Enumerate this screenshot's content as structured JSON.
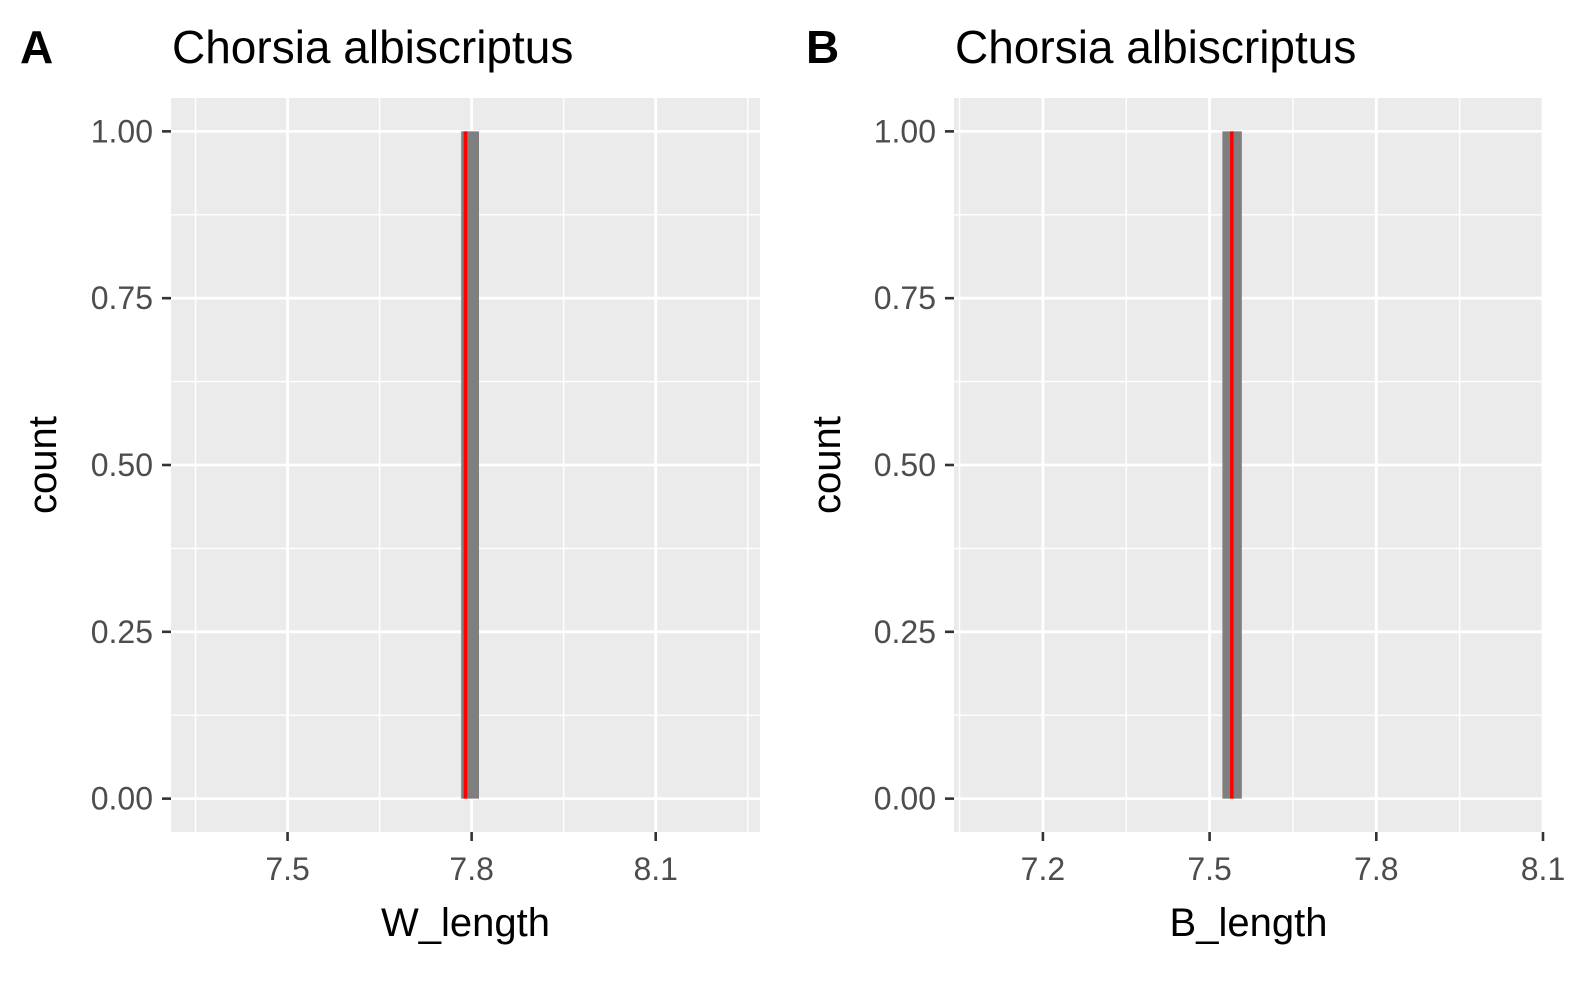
{
  "colors": {
    "panel_background": "#ebebeb",
    "grid": "#ffffff",
    "bar_fill": "#7f7f7f",
    "mean_line": "#ff0000",
    "tick_text": "#4d4d4d",
    "axis_ticks": "#333333"
  },
  "chart_data": [
    {
      "type": "bar",
      "tag": "A",
      "title": "Chorsia albiscriptus",
      "xlabel": "W_length",
      "ylabel": "count",
      "xlim": [
        7.31,
        8.27
      ],
      "ylim": [
        -0.05,
        1.05
      ],
      "x_ticks": [
        7.5,
        7.8,
        8.1
      ],
      "x_tick_labels": [
        "7.5",
        "7.8",
        "8.1"
      ],
      "x_minor": [
        7.35,
        7.65,
        7.95,
        8.25
      ],
      "y_ticks": [
        0,
        0.25,
        0.5,
        0.75,
        1
      ],
      "y_tick_labels": [
        "0.00",
        "0.25",
        "0.50",
        "0.75",
        "1.00"
      ],
      "y_minor": [
        0.125,
        0.375,
        0.625,
        0.875
      ],
      "bars": [
        {
          "x_start": 7.783,
          "x_end": 7.812,
          "count": 1
        }
      ],
      "mean_line_x": 7.79,
      "grid": true,
      "legend": "none"
    },
    {
      "type": "bar",
      "tag": "B",
      "title": "Chorsia albiscriptus",
      "xlabel": "B_length",
      "ylabel": "count",
      "xlim": [
        7.04,
        8.1
      ],
      "ylim": [
        -0.05,
        1.05
      ],
      "x_ticks": [
        7.2,
        7.5,
        7.8,
        8.1
      ],
      "x_tick_labels": [
        "7.2",
        "7.5",
        "7.8",
        "8.1"
      ],
      "x_minor": [
        7.05,
        7.35,
        7.65,
        7.95
      ],
      "y_ticks": [
        0,
        0.25,
        0.5,
        0.75,
        1
      ],
      "y_tick_labels": [
        "0.00",
        "0.25",
        "0.50",
        "0.75",
        "1.00"
      ],
      "y_minor": [
        0.125,
        0.375,
        0.625,
        0.875
      ],
      "bars": [
        {
          "x_start": 7.523,
          "x_end": 7.558,
          "count": 1
        }
      ],
      "mean_line_x": 7.54,
      "grid": true,
      "legend": "none"
    }
  ]
}
